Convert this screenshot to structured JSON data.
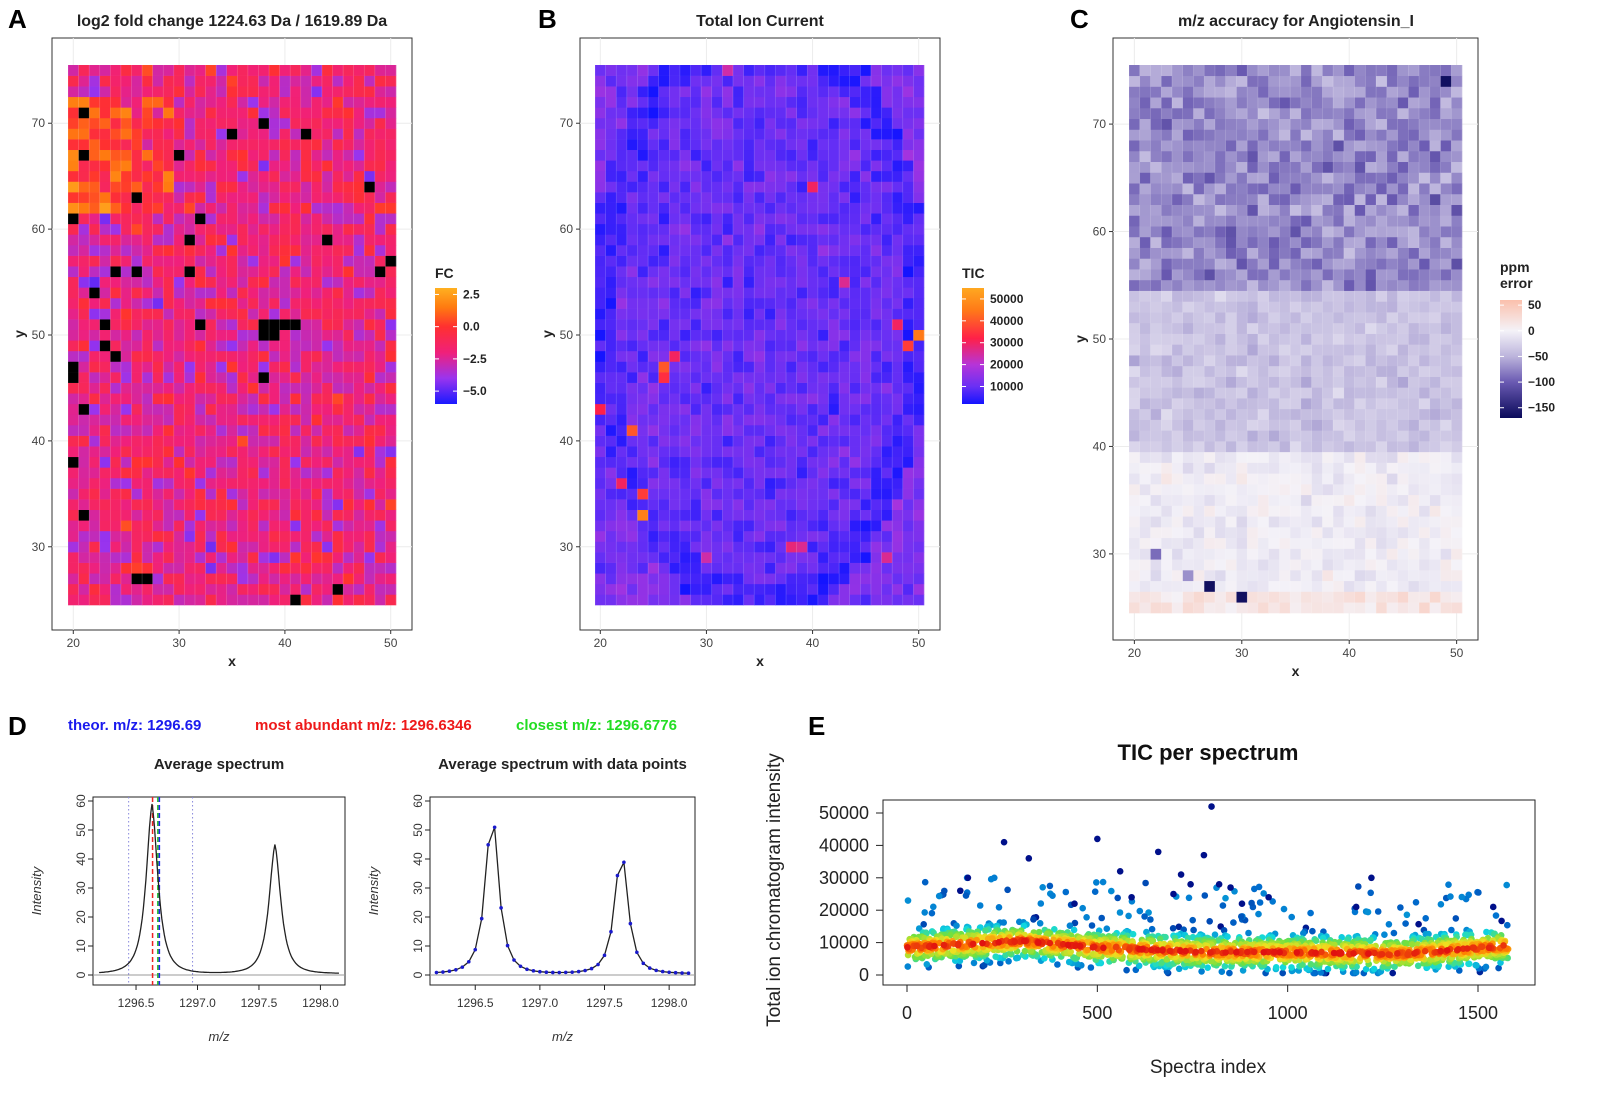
{
  "panel_labels": [
    "A",
    "B",
    "C",
    "D",
    "E"
  ],
  "chart_data": [
    {
      "id": "A",
      "type": "heatmap",
      "title": "log2 fold change 1224.63 Da / 1619.89 Da",
      "xlabel": "x",
      "ylabel": "y",
      "xlim": [
        20,
        50
      ],
      "ylim": [
        25,
        75
      ],
      "xticks": [
        20,
        30,
        40,
        50
      ],
      "yticks": [
        30,
        40,
        50,
        60,
        70
      ],
      "legend": {
        "title": "FC",
        "ticks": [
          2.5,
          0.0,
          -2.5,
          -5.0
        ],
        "tick_labels": [
          "2.5",
          "0.0",
          "−2.5",
          "−5.0"
        ],
        "range": [
          -6,
          3
        ]
      },
      "colorscale": [
        [
          -6,
          "#1a1aff"
        ],
        [
          -4,
          "#9a34ee"
        ],
        [
          -2,
          "#f0207a"
        ],
        [
          0,
          "#ff3030"
        ],
        [
          1.5,
          "#ff7a10"
        ],
        [
          3,
          "#ffb020"
        ]
      ],
      "background_mean": -2.0,
      "regions": [
        {
          "x": [
            20,
            29
          ],
          "y": [
            62,
            72
          ],
          "mean": 0.8
        }
      ],
      "na_color": "#000000",
      "na_cells": [
        [
          21,
          71
        ],
        [
          21,
          67
        ],
        [
          30,
          67
        ],
        [
          35,
          69
        ],
        [
          38,
          70
        ],
        [
          42,
          69
        ],
        [
          48,
          64
        ],
        [
          26,
          63
        ],
        [
          20,
          61
        ],
        [
          32,
          61
        ],
        [
          31,
          59
        ],
        [
          44,
          59
        ],
        [
          22,
          54
        ],
        [
          24,
          56
        ],
        [
          26,
          56
        ],
        [
          31,
          56
        ],
        [
          50,
          57
        ],
        [
          49,
          56
        ],
        [
          23,
          51
        ],
        [
          32,
          51
        ],
        [
          38,
          51
        ],
        [
          39,
          51
        ],
        [
          40,
          51
        ],
        [
          41,
          51
        ],
        [
          38,
          50
        ],
        [
          39,
          50
        ],
        [
          23,
          49
        ],
        [
          24,
          48
        ],
        [
          20,
          47
        ],
        [
          20,
          46
        ],
        [
          38,
          46
        ],
        [
          21,
          43
        ],
        [
          20,
          38
        ],
        [
          21,
          33
        ],
        [
          26,
          27
        ],
        [
          27,
          27
        ],
        [
          45,
          26
        ],
        [
          41,
          25
        ]
      ]
    },
    {
      "id": "B",
      "type": "heatmap",
      "title": "Total Ion Current",
      "xlabel": "x",
      "ylabel": "y",
      "xlim": [
        20,
        50
      ],
      "ylim": [
        25,
        75
      ],
      "xticks": [
        20,
        30,
        40,
        50
      ],
      "yticks": [
        30,
        40,
        50,
        60,
        70
      ],
      "legend": {
        "title": "TIC",
        "ticks": [
          50000,
          40000,
          30000,
          20000,
          10000
        ],
        "tick_labels": [
          "50000",
          "40000",
          "30000",
          "20000",
          "10000"
        ],
        "range": [
          2000,
          55000
        ]
      },
      "colorscale": [
        [
          2000,
          "#1414ff"
        ],
        [
          10000,
          "#6a30f4"
        ],
        [
          20000,
          "#b634d8"
        ],
        [
          32000,
          "#ff2048"
        ],
        [
          45000,
          "#ff7a18"
        ],
        [
          55000,
          "#ffa820"
        ]
      ],
      "background_mean": 10000,
      "hotspots": [
        [
          50,
          50,
          45000
        ],
        [
          49,
          49,
          36000
        ],
        [
          48,
          51,
          30000
        ],
        [
          26,
          47,
          40000
        ],
        [
          26,
          46,
          34000
        ],
        [
          27,
          48,
          30000
        ],
        [
          20,
          43,
          32000
        ],
        [
          23,
          41,
          40000
        ],
        [
          24,
          35,
          36000
        ],
        [
          24,
          33,
          46000
        ],
        [
          22,
          36,
          30000
        ],
        [
          40,
          64,
          30000
        ],
        [
          38,
          30,
          28000
        ],
        [
          39,
          30,
          26000
        ],
        [
          32,
          75,
          24000
        ],
        [
          43,
          55,
          26000
        ],
        [
          47,
          29,
          26000
        ],
        [
          30,
          29,
          24000
        ]
      ]
    },
    {
      "id": "C",
      "type": "heatmap",
      "title": "m/z accuracy for Angiotensin_I",
      "xlabel": "x",
      "ylabel": "y",
      "xlim": [
        20,
        50
      ],
      "ylim": [
        25,
        75
      ],
      "xticks": [
        20,
        30,
        40,
        50
      ],
      "yticks": [
        30,
        40,
        50,
        60,
        70
      ],
      "legend": {
        "title": "ppm\nerror",
        "title_lines": [
          "ppm",
          "error"
        ],
        "ticks": [
          50,
          0,
          -50,
          -100,
          -150
        ],
        "tick_labels": [
          "50",
          "0",
          "−50",
          "−100",
          "−150"
        ],
        "range": [
          -170,
          60
        ]
      },
      "colorscale": [
        [
          -170,
          "#0a0a5a"
        ],
        [
          -100,
          "#6a5ab2"
        ],
        [
          -50,
          "#bcb4dc"
        ],
        [
          0,
          "#f4f2f8"
        ],
        [
          60,
          "#fbc0ac"
        ]
      ],
      "bands": [
        {
          "y": [
            55,
            75
          ],
          "mean": -75
        },
        {
          "y": [
            40,
            54
          ],
          "mean": -38
        },
        {
          "y": [
            27,
            39
          ],
          "mean": -5
        },
        {
          "y": [
            25,
            26
          ],
          "mean": 18
        }
      ],
      "outliers": [
        [
          49,
          74,
          -165
        ],
        [
          27,
          27,
          -165
        ],
        [
          30,
          26,
          -165
        ],
        [
          41,
          26,
          30
        ],
        [
          22,
          30,
          -90
        ],
        [
          25,
          28,
          -70
        ]
      ]
    },
    {
      "id": "D",
      "type": "line",
      "annotations": [
        {
          "text": "theor. m/z: 1296.69",
          "color": "#1a1aee"
        },
        {
          "text": "most abundant m/z: 1296.6346",
          "color": "#ee1a1a"
        },
        {
          "text": "closest m/z: 1296.6776",
          "color": "#22dd22"
        }
      ],
      "subplots": [
        {
          "title": "Average spectrum",
          "xlabel": "m/z",
          "ylabel": "Intensity",
          "show_points": false,
          "vlines": [
            {
              "x": 1296.44,
              "style": "dotted",
              "color": "#8888dd"
            },
            {
              "x": 1296.96,
              "style": "dotted",
              "color": "#8888dd"
            },
            {
              "x": 1296.6346,
              "style": "dashed",
              "color": "#ee2222"
            },
            {
              "x": 1296.6776,
              "style": "dashed",
              "color": "#22bb22"
            },
            {
              "x": 1296.69,
              "style": "dashed",
              "color": "#2222ee"
            }
          ]
        },
        {
          "title": "Average spectrum with data points",
          "xlabel": "m/z",
          "ylabel": "Intensity",
          "show_points": true,
          "vlines": []
        }
      ],
      "xlim": [
        1296.15,
        1298.2
      ],
      "ylim": [
        0,
        60
      ],
      "xticks": [
        "1296.5",
        "1297.0",
        "1297.5",
        "1298.0"
      ],
      "yticks": [
        "0",
        "10",
        "20",
        "30",
        "40",
        "50",
        "60"
      ],
      "x_step": 0.05,
      "x_start": 1296.2,
      "x_end": 1298.15,
      "peaks": [
        {
          "center": 1296.63,
          "height": 58.5,
          "width": 0.075
        },
        {
          "center": 1297.63,
          "height": 44.5,
          "width": 0.075
        }
      ],
      "baseline": 0.5
    },
    {
      "id": "E",
      "type": "scatter",
      "title": "TIC per spectrum",
      "xlabel": "Spectra index",
      "ylabel": "Total ion chromatogram intensity",
      "xlim": [
        0,
        1580
      ],
      "ylim": [
        0,
        52000
      ],
      "xticks": [
        "0",
        "500",
        "1000",
        "1500"
      ],
      "yticks": [
        "0",
        "10000",
        "20000",
        "30000",
        "40000",
        "50000"
      ],
      "n_points": 1580,
      "typical_range": [
        3000,
        16000
      ],
      "median_trend": [
        [
          0,
          8500
        ],
        [
          300,
          10500
        ],
        [
          500,
          8500
        ],
        [
          800,
          7000
        ],
        [
          1000,
          7000
        ],
        [
          1300,
          6500
        ],
        [
          1580,
          9000
        ]
      ],
      "high_points": [
        [
          800,
          52000
        ],
        [
          255,
          41000
        ],
        [
          500,
          42000
        ],
        [
          320,
          36000
        ],
        [
          660,
          38000
        ],
        [
          780,
          37000
        ],
        [
          1220,
          30000
        ],
        [
          160,
          30000
        ],
        [
          720,
          31000
        ],
        [
          745,
          28000
        ],
        [
          820,
          28000
        ],
        [
          850,
          27000
        ],
        [
          560,
          32000
        ],
        [
          140,
          26000
        ],
        [
          590,
          24000
        ],
        [
          950,
          24000
        ],
        [
          1180,
          21000
        ],
        [
          1540,
          21000
        ],
        [
          440,
          22000
        ],
        [
          700,
          25000
        ],
        [
          880,
          22000
        ]
      ],
      "color_scale": "density (blue → cyan → green → yellow → red)"
    }
  ]
}
